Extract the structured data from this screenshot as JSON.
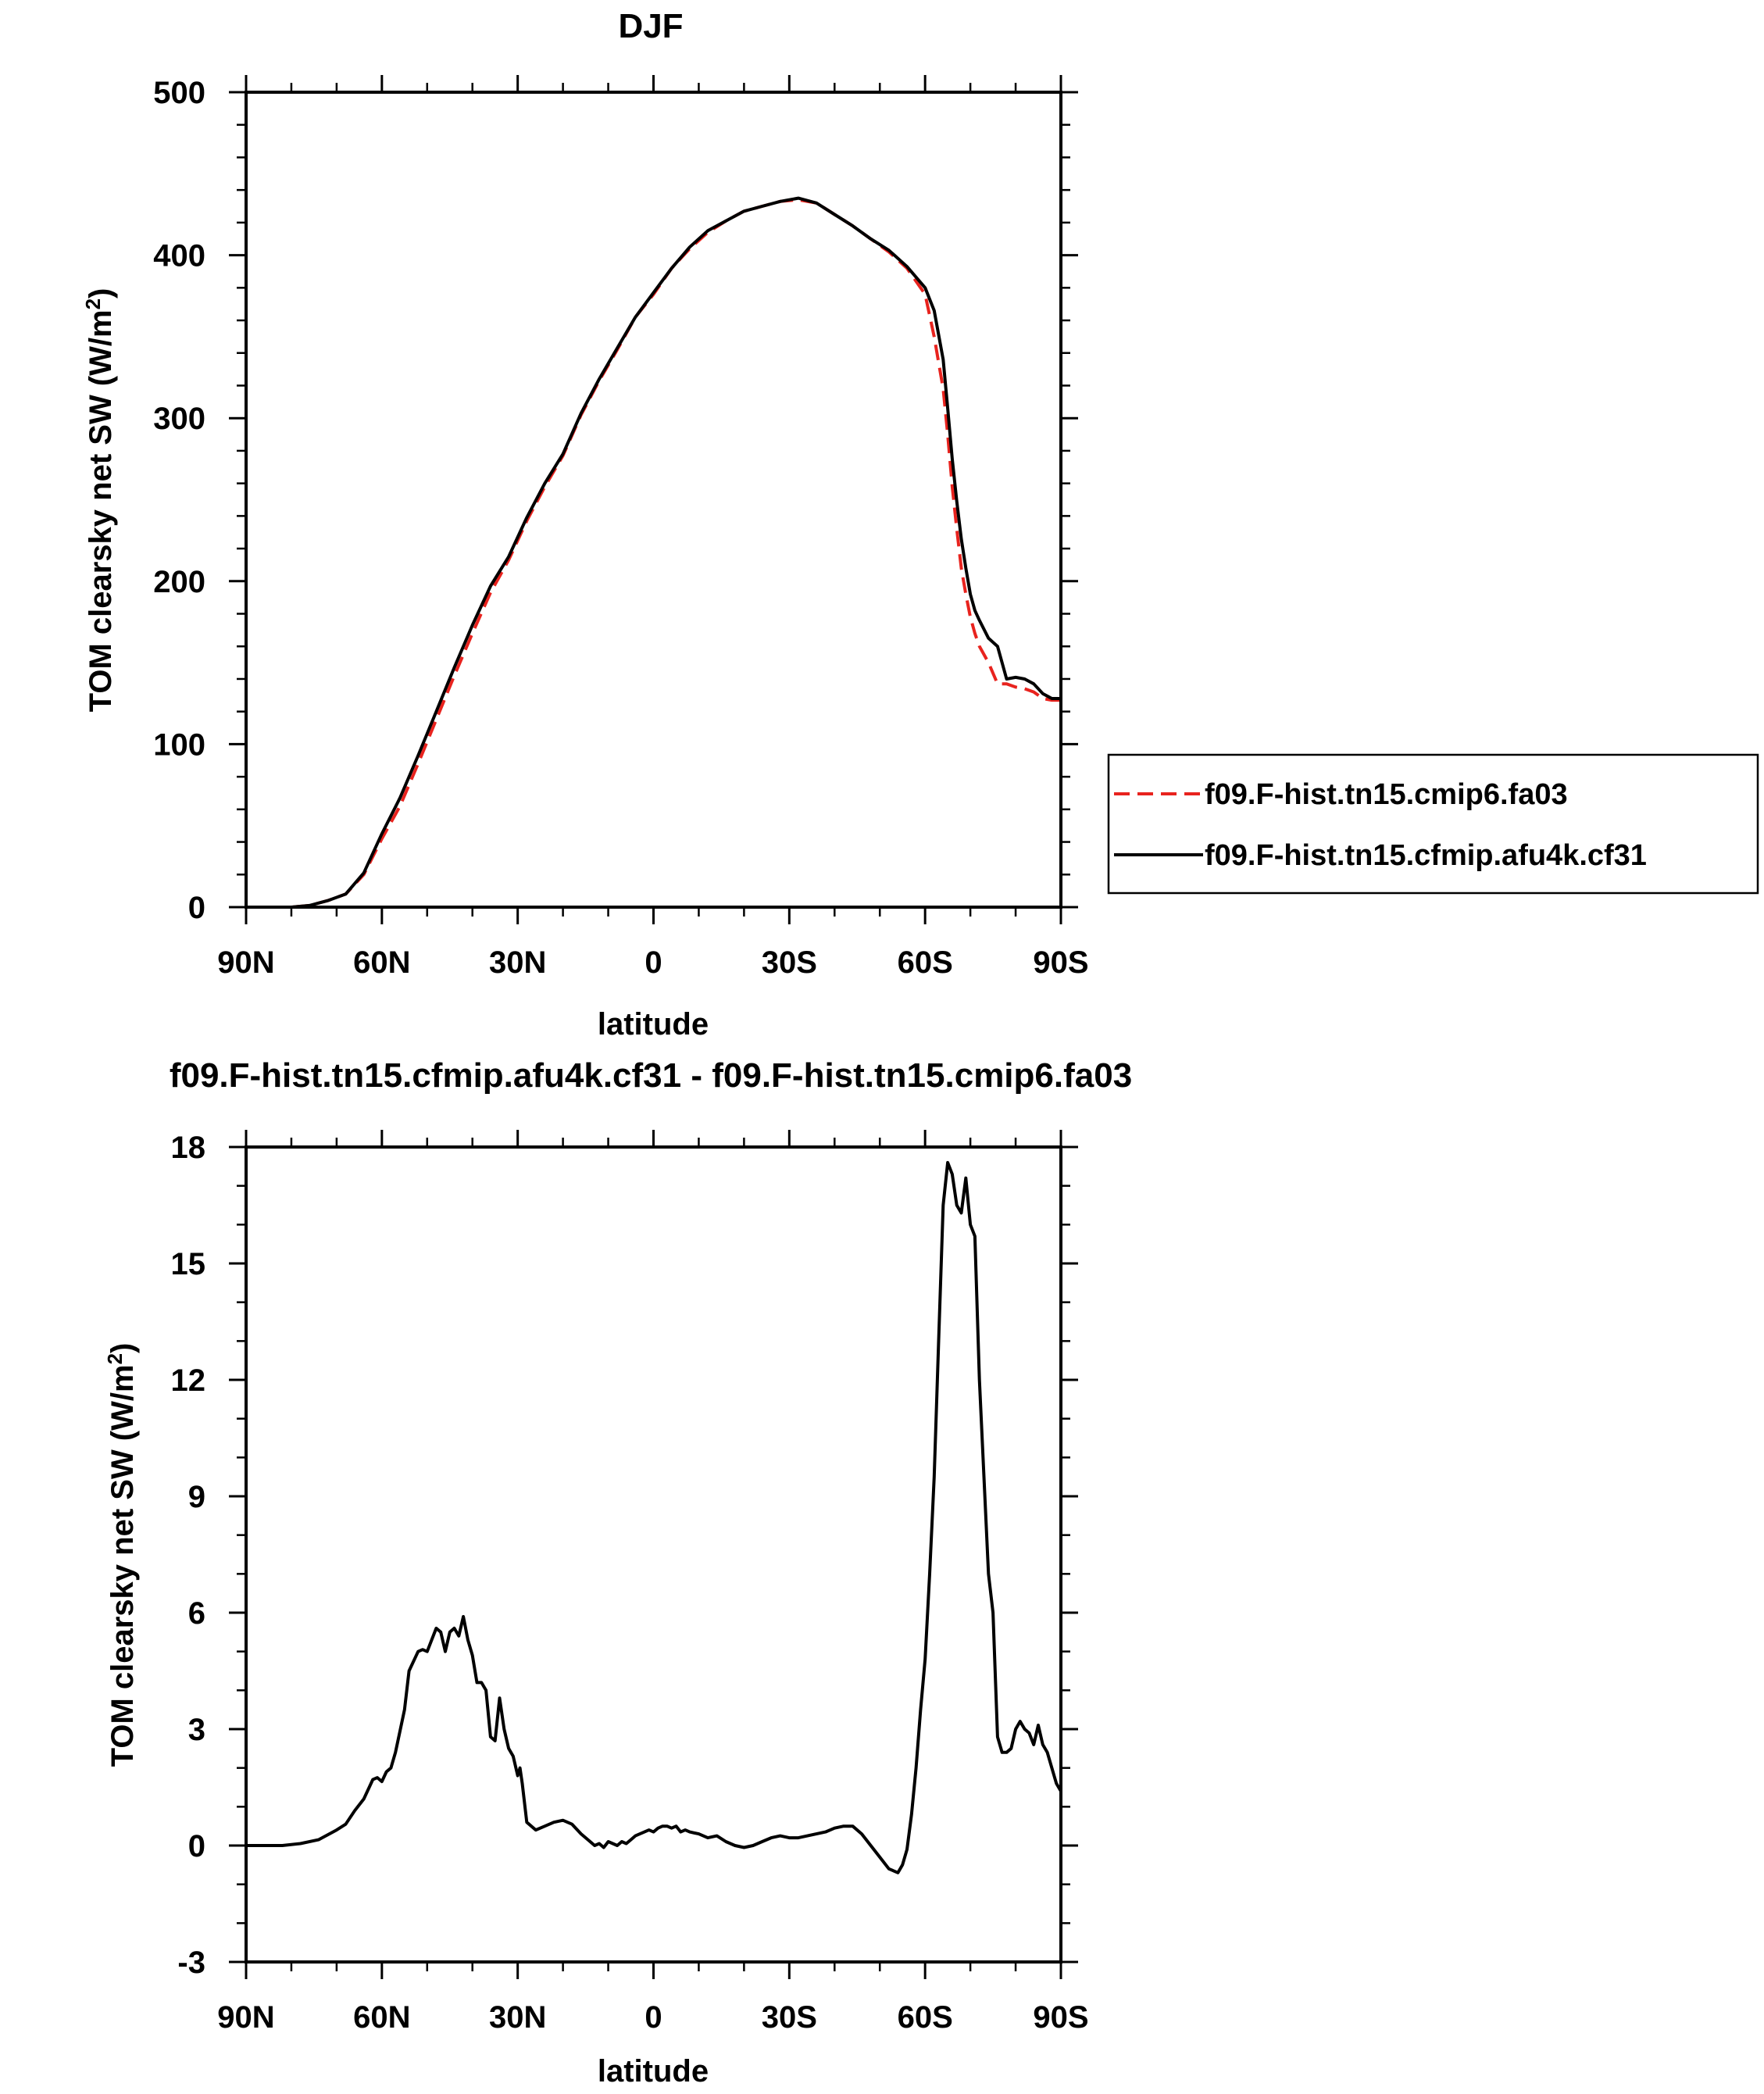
{
  "chart_data": [
    {
      "type": "line",
      "title": "DJF",
      "xlabel": "latitude",
      "ylabel_main": "TOM clearsky net SW (W/m",
      "ylabel_sup": "2",
      "ylabel_tail": ")",
      "xlim": [
        90,
        -90
      ],
      "ylim": [
        0,
        500
      ],
      "x_ticks": [
        90,
        60,
        30,
        0,
        -30,
        -60,
        -90
      ],
      "x_tick_labels": [
        "90N",
        "60N",
        "30N",
        "0",
        "30S",
        "60S",
        "90S"
      ],
      "y_ticks": [
        0,
        100,
        200,
        300,
        400,
        500
      ],
      "y_tick_labels": [
        "0",
        "100",
        "200",
        "300",
        "400",
        "500"
      ],
      "legend": {
        "position": "right",
        "entries": [
          "f09.F-hist.tn15.cmip6.fa03",
          "f09.F-hist.tn15.cfmip.afu4k.cf31"
        ]
      },
      "series": [
        {
          "name": "f09.F-hist.tn15.cmip6.fa03",
          "color": "#e8231e",
          "style": "dashed",
          "x": [
            90,
            86,
            80,
            76,
            72,
            68,
            64,
            60,
            56,
            52,
            48,
            44,
            40,
            36,
            32,
            28,
            24,
            20,
            16,
            12,
            8,
            4,
            0,
            -4,
            -8,
            -12,
            -16,
            -20,
            -24,
            -28,
            -32,
            -36,
            -40,
            -44,
            -48,
            -52,
            -56,
            -60,
            -62,
            -64,
            -65,
            -66,
            -67,
            -68,
            -69,
            -70,
            -71,
            -72,
            -74,
            -76,
            -78,
            -80,
            -82,
            -84,
            -86,
            -88,
            -90
          ],
          "y": [
            0,
            0,
            0,
            1,
            4,
            8,
            20,
            42,
            62,
            88,
            115,
            142,
            168,
            193,
            213,
            237,
            258,
            277,
            302,
            323,
            342,
            362,
            376,
            392,
            404,
            414,
            421,
            427,
            430,
            433,
            434,
            432,
            425,
            418,
            410,
            402,
            392,
            376,
            350,
            318,
            290,
            258,
            232,
            208,
            192,
            178,
            168,
            160,
            150,
            137,
            137,
            135,
            134,
            132,
            128,
            127,
            127
          ]
        },
        {
          "name": "f09.F-hist.tn15.cfmip.afu4k.cf31",
          "color": "#000000",
          "style": "solid",
          "x": [
            90,
            86,
            80,
            76,
            72,
            68,
            64,
            60,
            56,
            52,
            48,
            44,
            40,
            36,
            32,
            28,
            24,
            20,
            16,
            12,
            8,
            4,
            0,
            -4,
            -8,
            -12,
            -16,
            -20,
            -24,
            -28,
            -32,
            -36,
            -40,
            -44,
            -48,
            -52,
            -56,
            -60,
            -62,
            -64,
            -65,
            -66,
            -67,
            -68,
            -69,
            -70,
            -71,
            -72,
            -74,
            -76,
            -78,
            -80,
            -82,
            -84,
            -86,
            -88,
            -90
          ],
          "y": [
            0,
            0,
            0,
            1,
            4,
            8,
            21,
            45,
            67,
            93,
            120,
            147,
            173,
            197,
            215,
            239,
            260,
            278,
            303,
            324,
            343,
            362,
            377,
            392,
            405,
            415,
            421,
            427,
            430,
            433,
            435,
            432,
            425,
            418,
            410,
            403,
            393,
            380,
            366,
            336,
            306,
            275,
            249,
            226,
            208,
            192,
            182,
            176,
            165,
            160,
            140,
            141,
            140,
            137,
            131,
            128,
            128
          ]
        }
      ]
    },
    {
      "type": "line",
      "title": "f09.F-hist.tn15.cfmip.afu4k.cf31 - f09.F-hist.tn15.cmip6.fa03",
      "xlabel": "latitude",
      "ylabel_main": "TOM clearsky net SW (W/m",
      "ylabel_sup": "2",
      "ylabel_tail": ")",
      "xlim": [
        90,
        -90
      ],
      "ylim": [
        -3,
        18
      ],
      "x_ticks": [
        90,
        60,
        30,
        0,
        -30,
        -60,
        -90
      ],
      "x_tick_labels": [
        "90N",
        "60N",
        "30N",
        "0",
        "30S",
        "60S",
        "90S"
      ],
      "y_ticks": [
        -3,
        0,
        3,
        6,
        9,
        12,
        15,
        18
      ],
      "y_tick_labels": [
        "-3",
        "0",
        "3",
        "6",
        "9",
        "12",
        "15",
        "18"
      ],
      "series": [
        {
          "name": "f09.F-hist.tn15.cfmip.afu4k.cf31 - f09.F-hist.tn15.cmip6.fa03",
          "color": "#000000",
          "style": "solid",
          "x": [
            90,
            86,
            82,
            78,
            74,
            70,
            68,
            66,
            64,
            62,
            61,
            60,
            59,
            58,
            57,
            55,
            54,
            52,
            51,
            50,
            48,
            47,
            46,
            45,
            44,
            43,
            42,
            41,
            40,
            39,
            38,
            37,
            36,
            35,
            34,
            33,
            32,
            31,
            30,
            29.5,
            29,
            28,
            26,
            24,
            22,
            20,
            18,
            16,
            14,
            13,
            12,
            11,
            10,
            9,
            8,
            7,
            6,
            5,
            4,
            3,
            2,
            1,
            0,
            -1,
            -2,
            -3,
            -4,
            -5,
            -6,
            -7,
            -8,
            -10,
            -12,
            -14,
            -16,
            -18,
            -20,
            -22,
            -24,
            -26,
            -28,
            -30,
            -32,
            -34,
            -36,
            -38,
            -40,
            -42,
            -44,
            -46,
            -48,
            -50,
            -52,
            -54,
            -55,
            -56,
            -57,
            -58,
            -59,
            -60,
            -61,
            -62,
            -63,
            -64,
            -65,
            -66,
            -67,
            -68,
            -69,
            -70,
            -71,
            -72,
            -73,
            -74,
            -75,
            -76,
            -77,
            -78,
            -79,
            -80,
            -81,
            -82,
            -83,
            -84,
            -85,
            -86,
            -87,
            -88,
            -89,
            -90
          ],
          "y": [
            0,
            0,
            0,
            0.05,
            0.15,
            0.4,
            0.55,
            0.9,
            1.2,
            1.7,
            1.75,
            1.65,
            1.9,
            2.0,
            2.4,
            3.5,
            4.5,
            5.0,
            5.05,
            5.0,
            5.6,
            5.5,
            5.0,
            5.5,
            5.6,
            5.4,
            5.9,
            5.3,
            4.9,
            4.2,
            4.2,
            4.0,
            2.8,
            2.7,
            3.8,
            3.0,
            2.5,
            2.3,
            1.8,
            2.0,
            1.6,
            0.6,
            0.4,
            0.5,
            0.6,
            0.65,
            0.55,
            0.3,
            0.1,
            0.0,
            0.05,
            -0.05,
            0.1,
            0.05,
            0.0,
            0.1,
            0.05,
            0.15,
            0.25,
            0.3,
            0.35,
            0.4,
            0.35,
            0.45,
            0.5,
            0.5,
            0.45,
            0.5,
            0.35,
            0.4,
            0.35,
            0.3,
            0.2,
            0.25,
            0.1,
            0.0,
            -0.05,
            0.0,
            0.1,
            0.2,
            0.25,
            0.2,
            0.2,
            0.25,
            0.3,
            0.35,
            0.45,
            0.5,
            0.5,
            0.3,
            0.0,
            -0.3,
            -0.6,
            -0.7,
            -0.5,
            -0.1,
            0.8,
            2.0,
            3.5,
            4.8,
            7.0,
            9.5,
            13.0,
            16.5,
            17.6,
            17.3,
            16.5,
            16.3,
            17.2,
            16.0,
            15.7,
            12.0,
            9.5,
            7.0,
            6.0,
            2.8,
            2.4,
            2.4,
            2.5,
            3.0,
            3.2,
            3.0,
            2.9,
            2.6,
            3.1,
            2.6,
            2.4,
            2.0,
            1.6,
            1.4
          ]
        }
      ]
    }
  ]
}
